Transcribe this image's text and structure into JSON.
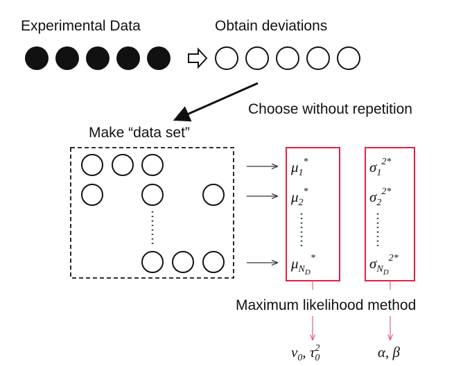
{
  "top": {
    "experimental_label": "Experimental Data",
    "deviations_label": "Obtain deviations"
  },
  "choose_label": "Choose without repetition",
  "dataset_label": "Make “data set”",
  "means": [
    {
      "symbol": "μ",
      "sub": "1",
      "sup": "*"
    },
    {
      "symbol": "μ",
      "sub": "2",
      "sup": "*"
    },
    {
      "symbol": "μ",
      "sub": "N",
      "subsub": "D",
      "sup": "*"
    }
  ],
  "variances": [
    {
      "symbol": "σ",
      "sub": "1",
      "sup": "2*"
    },
    {
      "symbol": "σ",
      "sub": "2",
      "sup": "2*"
    },
    {
      "symbol": "σ",
      "sub": "N",
      "subsub": "D",
      "sup": "2*"
    }
  ],
  "method_label": "Maximum likelihood method",
  "results": [
    {
      "first": "ν",
      "first_sub": "0",
      "sep": ", ",
      "second": "τ",
      "second_sub": "0",
      "second_sup": "2"
    },
    {
      "first": "α",
      "sep": ", ",
      "second": "β"
    }
  ]
}
